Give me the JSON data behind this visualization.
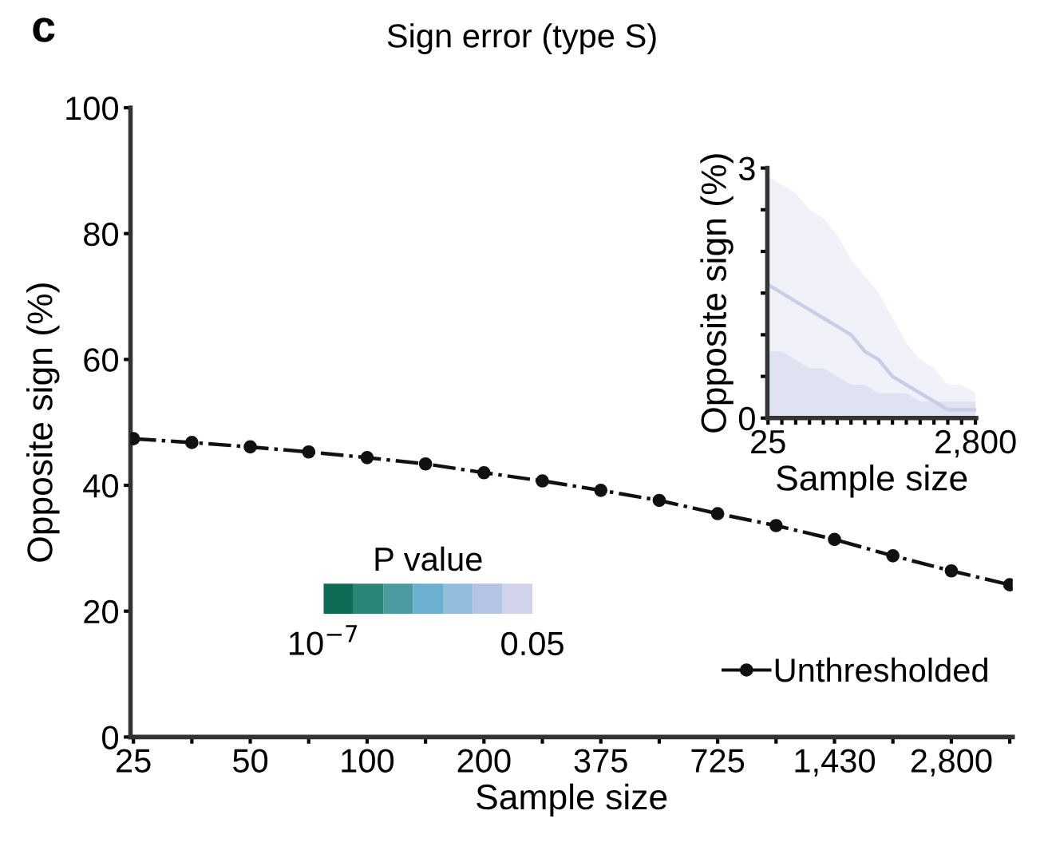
{
  "chart_data": [
    {
      "type": "line",
      "title": "Sign error (type S)",
      "xlabel": "Sample size",
      "ylabel": "Opposite sign (%)",
      "categories": [
        "25",
        null,
        "50",
        null,
        "100",
        null,
        "200",
        null,
        "375",
        null,
        "725",
        null,
        "1,430",
        null,
        "2,800",
        null
      ],
      "series": [
        {
          "name": "Unthresholded",
          "color": "#111111",
          "marker": "circle",
          "line_style": "dashdot",
          "values": [
            47.4,
            46.8,
            46.1,
            45.3,
            44.4,
            43.4,
            42.0,
            40.7,
            39.2,
            37.6,
            35.5,
            33.6,
            31.4,
            28.8,
            26.4,
            24.2
          ]
        }
      ],
      "ylim": [
        0,
        100
      ],
      "yticks": [
        0,
        20,
        40,
        60,
        80,
        100
      ],
      "legend": "bottom right",
      "grid": false,
      "clabel": "P value",
      "colors": [
        "#0e6b55",
        "#2a8577",
        "#4a9aa0",
        "#6bb0d0",
        "#94bcdc",
        "#b3c4e4",
        "#d2d2ea"
      ],
      "annotations": [
        "c",
        "10$^{−7}$",
        "0.05"
      ]
    },
    {
      "type": "line",
      "xlabel": "Sample size",
      "ylabel": "Opposite sign (%)",
      "categories": [
        "25",
        null,
        null,
        null,
        null,
        null,
        null,
        null,
        null,
        null,
        null,
        null,
        null,
        null,
        null,
        "2,800"
      ],
      "series": [
        {
          "type": "area",
          "color": "#eceef7",
          "values": [
            2.9,
            2.8,
            2.7,
            2.5,
            2.4,
            2.2,
            1.9,
            1.7,
            1.5,
            1.2,
            0.9,
            0.7,
            0.6,
            0.4,
            0.4,
            0.3
          ]
        },
        {
          "type": "area",
          "color": "#d9deef",
          "values": [
            0.8,
            0.8,
            0.7,
            0.6,
            0.6,
            0.5,
            0.4,
            0.4,
            0.3,
            0.3,
            0.3,
            0.2,
            0.2,
            0.2,
            0.2,
            0.2
          ]
        },
        {
          "color": "#c9cde6",
          "values": [
            1.6,
            1.5,
            1.4,
            1.3,
            1.2,
            1.1,
            1.0,
            0.8,
            0.7,
            0.5,
            0.4,
            0.3,
            0.2,
            0.1,
            0.1,
            0.1
          ]
        }
      ],
      "ylim": [
        0,
        3
      ],
      "yticks": [
        0,
        {
          "value": 0.5,
          "label": null
        },
        {
          "value": 1,
          "label": null
        },
        {
          "value": 1.5,
          "label": null
        },
        {
          "value": 2,
          "label": null
        },
        {
          "value": 2.5,
          "label": null
        },
        3
      ],
      "grid": false
    }
  ]
}
